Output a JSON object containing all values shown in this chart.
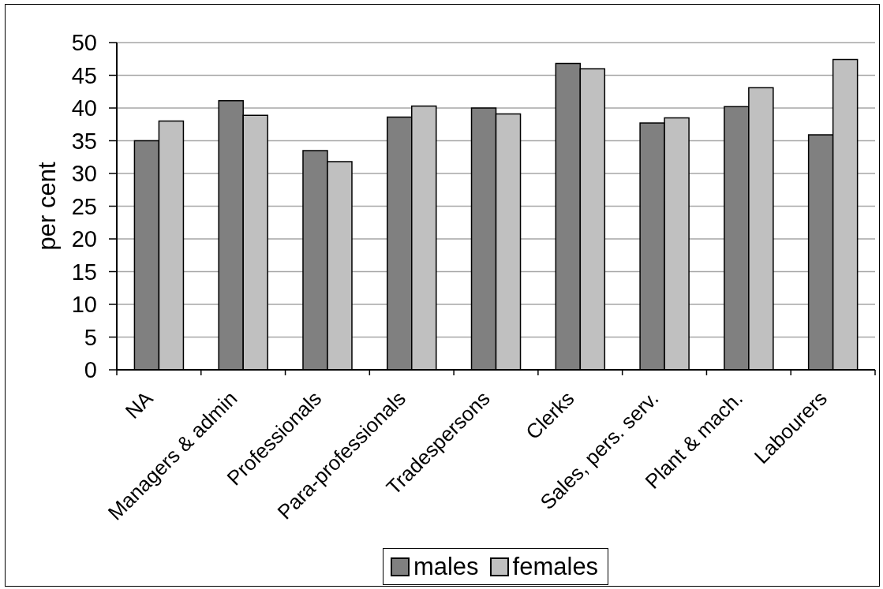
{
  "chart_data": {
    "type": "bar",
    "ylabel": "per cent",
    "categories": [
      "NA",
      "Managers & admin",
      "Professionals",
      "Para-professionals",
      "Tradespersons",
      "Clerks",
      "Sales, pers. serv.",
      "Plant & mach.",
      "Labourers"
    ],
    "series": [
      {
        "name": "males",
        "color": "#808080",
        "values": [
          35.0,
          41.1,
          33.5,
          38.6,
          40.0,
          46.8,
          37.7,
          40.2,
          35.9
        ]
      },
      {
        "name": "females",
        "color": "#c0c0c0",
        "values": [
          38.0,
          38.9,
          31.8,
          40.3,
          39.1,
          46.0,
          38.5,
          43.1,
          47.4
        ]
      }
    ],
    "ylim": [
      0,
      50
    ],
    "yticks": [
      0,
      5,
      10,
      15,
      20,
      25,
      30,
      35,
      40,
      45,
      50
    ],
    "grid": "y",
    "legend": "bottom"
  }
}
